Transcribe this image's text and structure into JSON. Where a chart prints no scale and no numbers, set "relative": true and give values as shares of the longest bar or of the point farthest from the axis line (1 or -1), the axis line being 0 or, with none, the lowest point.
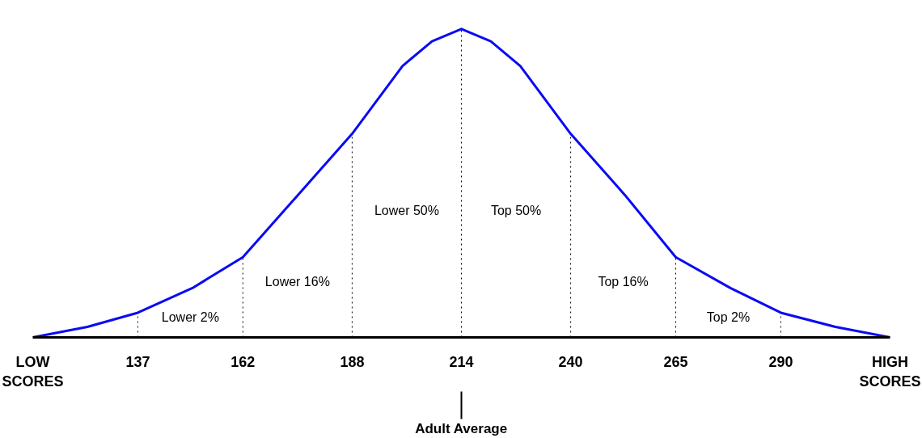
{
  "chart_data": {
    "type": "line",
    "relative": true,
    "x": [
      112,
      125,
      137,
      150,
      162,
      175,
      188,
      200,
      207,
      214,
      221,
      228,
      240,
      253,
      265,
      278,
      290,
      303,
      316
    ],
    "series": [
      {
        "color": "#0a0af5",
        "values": [
          0,
          0.034,
          0.08,
          0.16,
          0.26,
          0.46,
          0.66,
          0.88,
          0.96,
          1,
          0.96,
          0.88,
          0.66,
          0.46,
          0.26,
          0.16,
          0.08,
          0.034,
          0
        ]
      }
    ],
    "xlim": [
      112,
      316
    ],
    "xticks": [
      {
        "value": 112,
        "label": "LOW\nSCORES"
      },
      137,
      162,
      188,
      214,
      240,
      265,
      290,
      {
        "value": 316,
        "label": "HIGH\nSCORES"
      }
    ],
    "ref_lines": [
      {
        "axis": "x",
        "value": 137,
        "line_style": "dotted",
        "color": "#000000"
      },
      {
        "axis": "x",
        "value": 162,
        "line_style": "dotted",
        "color": "#000000"
      },
      {
        "axis": "x",
        "value": 188,
        "line_style": "dotted",
        "color": "#000000"
      },
      {
        "axis": "x",
        "value": 214,
        "line_style": "dotted",
        "color": "#000000"
      },
      {
        "axis": "x",
        "value": 240,
        "line_style": "dotted",
        "color": "#000000"
      },
      {
        "axis": "x",
        "value": 265,
        "line_style": "dotted",
        "color": "#000000"
      },
      {
        "axis": "x",
        "value": 290,
        "line_style": "dotted",
        "color": "#000000"
      }
    ],
    "annotations": [
      "Lower 2%",
      "Lower 16%",
      "Lower 50%",
      "Top 50%",
      "Top 16%",
      "Top 2%",
      "Adult Average"
    ],
    "grid": false,
    "marker": "none",
    "line_style": "solid"
  }
}
